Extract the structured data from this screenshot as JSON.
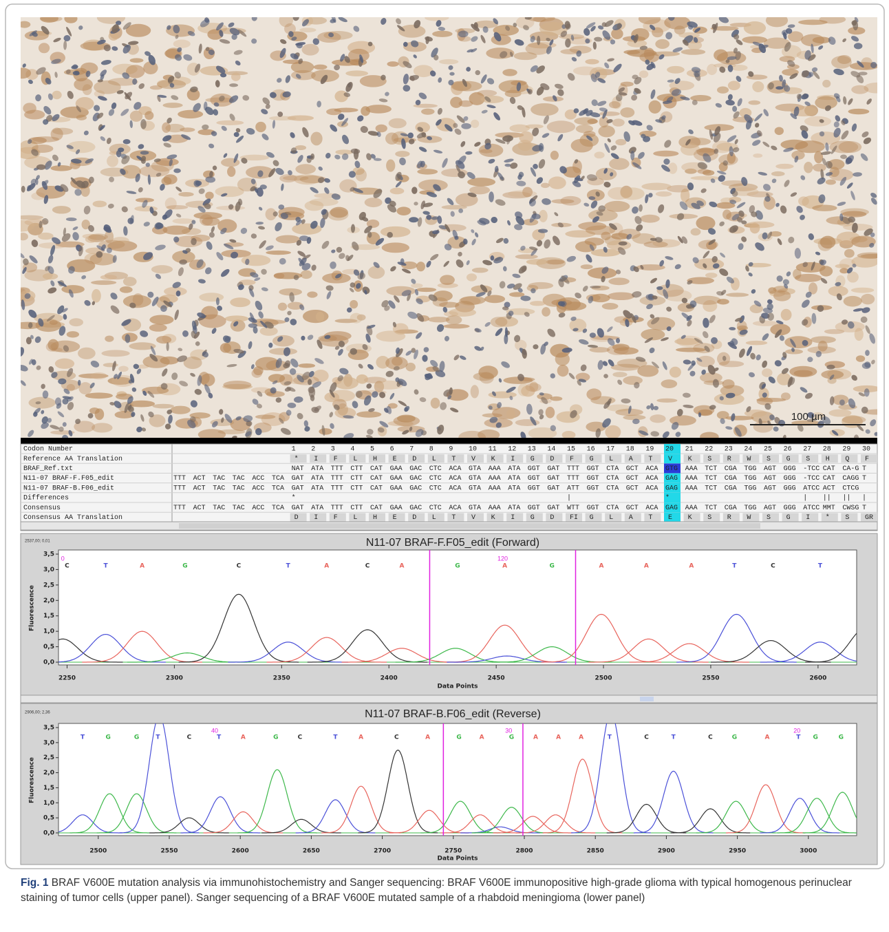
{
  "figure": {
    "scale_bar": "100 µm",
    "caption": {
      "label": "Fig. 1",
      "text": "BRAF V600E mutation analysis via immunohistochemistry and Sanger sequencing: BRAF V600E immunopositive high-grade glioma with typical homogenous perinuclear staining of tumor cells (upper panel). Sanger sequencing of a BRAF V600E mutated sample of a rhabdoid meningioma (lower panel)"
    }
  },
  "alignment": {
    "highlight_codon": 20,
    "rows": [
      {
        "label": "Codon Number",
        "cells": [
          null,
          null,
          null,
          null,
          null,
          null,
          1,
          2,
          3,
          4,
          5,
          6,
          7,
          8,
          9,
          10,
          11,
          12,
          13,
          14,
          15,
          16,
          17,
          18,
          19,
          20,
          21,
          22,
          23,
          24,
          25,
          26,
          27,
          28,
          29,
          30
        ]
      },
      {
        "label": "Reference AA Translation",
        "cells": [
          null,
          null,
          null,
          null,
          null,
          null,
          "*",
          "I",
          "F",
          "L",
          "H",
          "E",
          "D",
          "L",
          "T",
          "V",
          "K",
          "I",
          "G",
          "D",
          "F",
          "G",
          "L",
          "A",
          "T",
          "V",
          "K",
          "S",
          "R",
          "W",
          "S",
          "G",
          "S",
          "H",
          "Q",
          "F"
        ]
      },
      {
        "label": "BRAF_Ref.txt",
        "cells": [
          null,
          null,
          null,
          null,
          null,
          null,
          "NAT",
          "ATA",
          "TTT",
          "CTT",
          "CAT",
          "GAA",
          "GAC",
          "CTC",
          "ACA",
          "GTA",
          "AAA",
          "ATA",
          "GGT",
          "GAT",
          "TTT",
          "GGT",
          "CTA",
          "GCT",
          "ACA",
          "GTG",
          "AAA",
          "TCT",
          "CGA",
          "TGG",
          "AGT",
          "GGG",
          "-TCC",
          "CAT",
          "CA-G",
          "T"
        ]
      },
      {
        "label": "N11-07 BRAF-F.F05_edit",
        "cells": [
          "TTT",
          "ACT",
          "TAC",
          "TAC",
          "ACC",
          "TCA",
          "GAT",
          "ATA",
          "TTT",
          "CTT",
          "CAT",
          "GAA",
          "GAC",
          "CTC",
          "ACA",
          "GTA",
          "AAA",
          "ATA",
          "GGT",
          "GAT",
          "TTT",
          "GGT",
          "CTA",
          "GCT",
          "ACA",
          "GAG",
          "AAA",
          "TCT",
          "CGA",
          "TGG",
          "AGT",
          "GGG",
          "-TCC",
          "CAT",
          "CAGG",
          "T"
        ]
      },
      {
        "label": "N11-07 BRAF-B.F06_edit",
        "cells": [
          "TTT",
          "ACT",
          "TAC",
          "TAC",
          "ACC",
          "TCA",
          "GAT",
          "ATA",
          "TTT",
          "CTT",
          "CAT",
          "GAA",
          "GAC",
          "CTC",
          "ACA",
          "GTA",
          "AAA",
          "ATA",
          "GGT",
          "GAT",
          "ATT",
          "GGT",
          "CTA",
          "GCT",
          "ACA",
          "GAG",
          "AAA",
          "TCT",
          "CGA",
          "TGG",
          "AGT",
          "GGG",
          "ATCC",
          "ACT",
          "CTCG",
          null
        ]
      },
      {
        "label": "Differences",
        "cells": [
          null,
          null,
          null,
          null,
          null,
          null,
          "*",
          null,
          null,
          null,
          null,
          null,
          null,
          null,
          null,
          null,
          null,
          null,
          null,
          null,
          "|",
          null,
          null,
          null,
          null,
          "*",
          null,
          null,
          null,
          null,
          null,
          null,
          "|",
          "||",
          "||",
          "|"
        ]
      },
      {
        "label": "Consensus",
        "cells": [
          "TTT",
          "ACT",
          "TAC",
          "TAC",
          "ACC",
          "TCA",
          "GAT",
          "ATA",
          "TTT",
          "CTT",
          "CAT",
          "GAA",
          "GAC",
          "CTC",
          "ACA",
          "GTA",
          "AAA",
          "ATA",
          "GGT",
          "GAT",
          "WTT",
          "GGT",
          "CTA",
          "GCT",
          "ACA",
          "GAG",
          "AAA",
          "TCT",
          "CGA",
          "TGG",
          "AGT",
          "GGG",
          "ATCC",
          "MMT",
          "CWSG",
          "T"
        ]
      },
      {
        "label": "Consensus AA Translation",
        "cells": [
          null,
          null,
          null,
          null,
          null,
          null,
          "D",
          "I",
          "F",
          "L",
          "H",
          "E",
          "D",
          "L",
          "T",
          "V",
          "K",
          "I",
          "G",
          "D",
          "FI",
          "G",
          "L",
          "A",
          "T",
          "E",
          "K",
          "S",
          "R",
          "W",
          "S",
          "G",
          "I",
          "*",
          "S",
          "GR"
        ]
      }
    ]
  },
  "chromatograms": [
    {
      "title": "N11-07 BRAF-F.F05_edit (Forward)",
      "corner_label": "2537,00; 0,01",
      "xlabel": "Data Points",
      "ylabel": "Fluorescence",
      "xlim": [
        2246,
        2618
      ],
      "xticks": [
        2250,
        2300,
        2350,
        2400,
        2450,
        2500,
        2550,
        2600
      ],
      "ylim": [
        0,
        3.5
      ],
      "yticks": [
        {
          "value": 0,
          "label": "0,0"
        },
        {
          "value": 0.5,
          "label": "0,5"
        },
        {
          "value": 1,
          "label": "1,0"
        },
        {
          "value": 1.5,
          "label": "1,5"
        },
        {
          "value": 2,
          "label": "2,0"
        },
        {
          "value": 2.5,
          "label": "2,5"
        },
        {
          "value": 3,
          "label": "3,0"
        },
        {
          "value": 3.5,
          "label": "3,5"
        }
      ],
      "base_colors": {
        "A": "#e8645c",
        "C": "#333333",
        "G": "#3db84a",
        "T": "#4a50d8"
      },
      "markers": [
        2419,
        2487
      ],
      "position_labels": [
        {
          "x": 2248,
          "text": 0
        },
        {
          "x": 2453,
          "text": 120
        }
      ],
      "calls": [
        {
          "base": "C",
          "x": 2250
        },
        {
          "base": "T",
          "x": 2268
        },
        {
          "base": "A",
          "x": 2285
        },
        {
          "base": "G",
          "x": 2305
        },
        {
          "base": "C",
          "x": 2330
        },
        {
          "base": "T",
          "x": 2353
        },
        {
          "base": "A",
          "x": 2371
        },
        {
          "base": "C",
          "x": 2390
        },
        {
          "base": "A",
          "x": 2406
        },
        {
          "base": "G",
          "x": 2432
        },
        {
          "base": "A",
          "x": 2454
        },
        {
          "base": "G",
          "x": 2476
        },
        {
          "base": "A",
          "x": 2499
        },
        {
          "base": "A",
          "x": 2520
        },
        {
          "base": "A",
          "x": 2541
        },
        {
          "base": "T",
          "x": 2561
        },
        {
          "base": "C",
          "x": 2579
        },
        {
          "base": "T",
          "x": 2601
        }
      ],
      "peaks": [
        {
          "base": "C",
          "x": 2248,
          "y": 0.75
        },
        {
          "base": "T",
          "x": 2268,
          "y": 0.9
        },
        {
          "base": "A",
          "x": 2285,
          "y": 1.0
        },
        {
          "base": "G",
          "x": 2306,
          "y": 0.3
        },
        {
          "base": "C",
          "x": 2330,
          "y": 2.2
        },
        {
          "base": "T",
          "x": 2353,
          "y": 0.65
        },
        {
          "base": "A",
          "x": 2371,
          "y": 0.8
        },
        {
          "base": "C",
          "x": 2390,
          "y": 1.05
        },
        {
          "base": "A",
          "x": 2406,
          "y": 0.45
        },
        {
          "base": "G",
          "x": 2431,
          "y": 0.45
        },
        {
          "base": "A",
          "x": 2454,
          "y": 1.2
        },
        {
          "base": "T",
          "x": 2455,
          "y": 0.2
        },
        {
          "base": "G",
          "x": 2476,
          "y": 0.5
        },
        {
          "base": "A",
          "x": 2499,
          "y": 1.55
        },
        {
          "base": "A",
          "x": 2521,
          "y": 0.75
        },
        {
          "base": "A",
          "x": 2540,
          "y": 0.6
        },
        {
          "base": "T",
          "x": 2562,
          "y": 1.55
        },
        {
          "base": "C",
          "x": 2578,
          "y": 0.7
        },
        {
          "base": "T",
          "x": 2601,
          "y": 0.65
        },
        {
          "base": "C",
          "x": 2622,
          "y": 1.1
        }
      ]
    },
    {
      "title": "N11-07 BRAF-B.F06_edit (Reverse)",
      "corner_label": "2906,00; 2,36",
      "xlabel": "Data Points",
      "ylabel": "Fluorescence",
      "xlim": [
        2472,
        3034
      ],
      "xticks": [
        2500,
        2550,
        2600,
        2650,
        2700,
        2750,
        2800,
        2850,
        2900,
        2950,
        3000
      ],
      "ylim": [
        0,
        3.5
      ],
      "yticks": [
        {
          "value": 0,
          "label": "0,0"
        },
        {
          "value": 0.5,
          "label": "0,5"
        },
        {
          "value": 1,
          "label": "1,0"
        },
        {
          "value": 1.5,
          "label": "1,5"
        },
        {
          "value": 2,
          "label": "2,0"
        },
        {
          "value": 2.5,
          "label": "2,5"
        },
        {
          "value": 3,
          "label": "3,0"
        },
        {
          "value": 3.5,
          "label": "3,5"
        }
      ],
      "base_colors": {
        "A": "#e8645c",
        "C": "#333333",
        "G": "#3db84a",
        "T": "#4a50d8"
      },
      "markers": [
        2743,
        2799
      ],
      "position_labels": [
        {
          "x": 2582,
          "text": 40
        },
        {
          "x": 2789,
          "text": 30
        },
        {
          "x": 2992,
          "text": 20
        }
      ],
      "calls": [
        {
          "base": "T",
          "x": 2489
        },
        {
          "base": "G",
          "x": 2507
        },
        {
          "base": "G",
          "x": 2527
        },
        {
          "base": "T",
          "x": 2542
        },
        {
          "base": "C",
          "x": 2564
        },
        {
          "base": "T",
          "x": 2585
        },
        {
          "base": "A",
          "x": 2602
        },
        {
          "base": "G",
          "x": 2625
        },
        {
          "base": "C",
          "x": 2642
        },
        {
          "base": "T",
          "x": 2667
        },
        {
          "base": "A",
          "x": 2685
        },
        {
          "base": "C",
          "x": 2710
        },
        {
          "base": "A",
          "x": 2732
        },
        {
          "base": "G",
          "x": 2754
        },
        {
          "base": "A",
          "x": 2770
        },
        {
          "base": "G",
          "x": 2791
        },
        {
          "base": "A",
          "x": 2808
        },
        {
          "base": "A",
          "x": 2824
        },
        {
          "base": "A",
          "x": 2840
        },
        {
          "base": "T",
          "x": 2860
        },
        {
          "base": "C",
          "x": 2886
        },
        {
          "base": "T",
          "x": 2905
        },
        {
          "base": "C",
          "x": 2931
        },
        {
          "base": "G",
          "x": 2948
        },
        {
          "base": "A",
          "x": 2971
        },
        {
          "base": "T",
          "x": 2993
        },
        {
          "base": "G",
          "x": 3005
        },
        {
          "base": "G",
          "x": 3023
        }
      ],
      "peaks": [
        {
          "base": "T",
          "x": 2489,
          "y": 0.6
        },
        {
          "base": "G",
          "x": 2508,
          "y": 1.3
        },
        {
          "base": "G",
          "x": 2527,
          "y": 1.3
        },
        {
          "base": "T",
          "x": 2543,
          "y": 3.9
        },
        {
          "base": "C",
          "x": 2564,
          "y": 0.5
        },
        {
          "base": "T",
          "x": 2586,
          "y": 1.2
        },
        {
          "base": "A",
          "x": 2602,
          "y": 0.7
        },
        {
          "base": "G",
          "x": 2626,
          "y": 2.1
        },
        {
          "base": "C",
          "x": 2643,
          "y": 0.45
        },
        {
          "base": "T",
          "x": 2667,
          "y": 1.1
        },
        {
          "base": "A",
          "x": 2685,
          "y": 1.55
        },
        {
          "base": "C",
          "x": 2711,
          "y": 2.75
        },
        {
          "base": "A",
          "x": 2733,
          "y": 0.75
        },
        {
          "base": "G",
          "x": 2755,
          "y": 1.05
        },
        {
          "base": "A",
          "x": 2769,
          "y": 0.6
        },
        {
          "base": "T",
          "x": 2783,
          "y": 0.2
        },
        {
          "base": "G",
          "x": 2791,
          "y": 0.85
        },
        {
          "base": "A",
          "x": 2806,
          "y": 0.55
        },
        {
          "base": "A",
          "x": 2822,
          "y": 0.6
        },
        {
          "base": "A",
          "x": 2841,
          "y": 2.45
        },
        {
          "base": "T",
          "x": 2861,
          "y": 4.0
        },
        {
          "base": "C",
          "x": 2886,
          "y": 0.95
        },
        {
          "base": "T",
          "x": 2905,
          "y": 2.05
        },
        {
          "base": "C",
          "x": 2931,
          "y": 0.8
        },
        {
          "base": "G",
          "x": 2949,
          "y": 1.05
        },
        {
          "base": "A",
          "x": 2970,
          "y": 1.6
        },
        {
          "base": "T",
          "x": 2994,
          "y": 1.15
        },
        {
          "base": "G",
          "x": 3006,
          "y": 1.15
        },
        {
          "base": "G",
          "x": 3024,
          "y": 1.35
        }
      ]
    }
  ]
}
